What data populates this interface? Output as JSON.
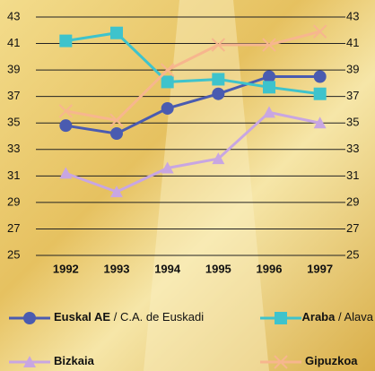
{
  "chart_data": {
    "type": "line",
    "categories": [
      "1992",
      "1993",
      "1994",
      "1995",
      "1996",
      "1997"
    ],
    "series": [
      {
        "name": "Euskal AE / C.A. de Euskadi",
        "color": "#4a5bb0",
        "marker": "circle",
        "values": [
          34.8,
          34.2,
          36.1,
          37.2,
          38.5,
          38.5
        ]
      },
      {
        "name": "Araba / Alava",
        "color": "#3ec3cc",
        "marker": "square",
        "values": [
          41.2,
          41.8,
          38.1,
          38.3,
          37.7,
          37.2
        ]
      },
      {
        "name": "Bizkaia",
        "color": "#c8a6e2",
        "marker": "triangle",
        "values": [
          31.2,
          29.8,
          31.6,
          32.3,
          35.8,
          35.0
        ]
      },
      {
        "name": "Gipuzkoa",
        "color": "#f7b68e",
        "marker": "x",
        "values": [
          35.9,
          35.2,
          39.0,
          40.9,
          40.9,
          41.9
        ]
      }
    ],
    "ylim": [
      25,
      43
    ],
    "yticks": [
      25,
      27,
      29,
      31,
      33,
      35,
      37,
      39,
      41,
      43
    ],
    "grid": true
  }
}
